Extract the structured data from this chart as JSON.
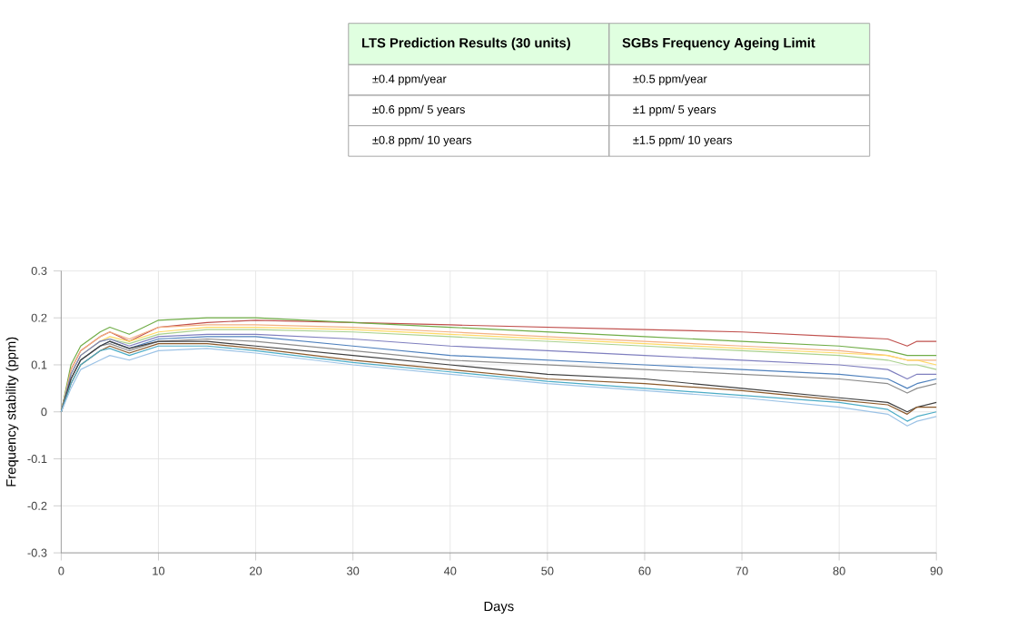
{
  "chart_data": [
    {
      "type": "other",
      "annotations": [
        "LTS Prediction Results (30 units)",
        "SGBs Frequency Ageing Limit",
        "±0.4 ppm/year",
        "±0.5 ppm/year",
        "±0.6 ppm/ 5 years",
        "±1 ppm/ 5 years",
        "±0.8 ppm/ 10 years",
        "±1.5 ppm/ 10 years"
      ]
    },
    {
      "type": "line",
      "xlabel": "Days",
      "ylabel": "Frequency stability (ppm)",
      "x": [
        0,
        1,
        2,
        4,
        5,
        7,
        10,
        15,
        20,
        30,
        40,
        50,
        60,
        70,
        80,
        85,
        87,
        88,
        90
      ],
      "series": [
        {
          "color": "#c0504d",
          "values": [
            0,
            0.09,
            0.13,
            0.16,
            0.17,
            0.15,
            0.18,
            0.19,
            0.195,
            0.19,
            0.185,
            0.18,
            0.175,
            0.17,
            0.16,
            0.155,
            0.14,
            0.15,
            0.15
          ]
        },
        {
          "color": "#70ad47",
          "values": [
            0,
            0.1,
            0.14,
            0.17,
            0.18,
            0.165,
            0.195,
            0.2,
            0.2,
            0.19,
            0.18,
            0.17,
            0.16,
            0.15,
            0.14,
            0.13,
            0.12,
            0.12,
            0.12
          ]
        },
        {
          "color": "#f4b183",
          "values": [
            0,
            0.09,
            0.13,
            0.16,
            0.17,
            0.155,
            0.18,
            0.185,
            0.185,
            0.18,
            0.17,
            0.16,
            0.15,
            0.14,
            0.13,
            0.12,
            0.11,
            0.11,
            0.11
          ]
        },
        {
          "color": "#ffd966",
          "values": [
            0,
            0.08,
            0.12,
            0.15,
            0.16,
            0.15,
            0.17,
            0.18,
            0.18,
            0.175,
            0.165,
            0.155,
            0.145,
            0.135,
            0.125,
            0.12,
            0.11,
            0.11,
            0.1
          ]
        },
        {
          "color": "#a9d18e",
          "values": [
            0,
            0.08,
            0.12,
            0.15,
            0.155,
            0.145,
            0.165,
            0.175,
            0.175,
            0.17,
            0.16,
            0.15,
            0.14,
            0.13,
            0.12,
            0.11,
            0.1,
            0.1,
            0.09
          ]
        },
        {
          "color": "#7f7fbf",
          "values": [
            0,
            0.08,
            0.12,
            0.15,
            0.155,
            0.14,
            0.16,
            0.165,
            0.165,
            0.155,
            0.14,
            0.13,
            0.12,
            0.11,
            0.1,
            0.09,
            0.07,
            0.08,
            0.08
          ]
        },
        {
          "color": "#4f81bd",
          "values": [
            0,
            0.07,
            0.11,
            0.14,
            0.15,
            0.135,
            0.155,
            0.16,
            0.16,
            0.14,
            0.12,
            0.11,
            0.1,
            0.09,
            0.08,
            0.07,
            0.05,
            0.06,
            0.07
          ]
        },
        {
          "color": "#8c8c8c",
          "values": [
            0,
            0.07,
            0.11,
            0.14,
            0.145,
            0.13,
            0.15,
            0.155,
            0.15,
            0.13,
            0.11,
            0.1,
            0.09,
            0.08,
            0.07,
            0.06,
            0.04,
            0.05,
            0.06
          ]
        },
        {
          "color": "#404040",
          "values": [
            0,
            0.07,
            0.11,
            0.14,
            0.15,
            0.135,
            0.15,
            0.15,
            0.14,
            0.12,
            0.1,
            0.08,
            0.07,
            0.05,
            0.03,
            0.02,
            0.0,
            0.01,
            0.02
          ]
        },
        {
          "color": "#8b5a2b",
          "values": [
            0,
            0.06,
            0.1,
            0.13,
            0.14,
            0.125,
            0.145,
            0.145,
            0.135,
            0.11,
            0.09,
            0.07,
            0.06,
            0.045,
            0.025,
            0.015,
            -0.005,
            0.01,
            0.01
          ]
        },
        {
          "color": "#4bacc6",
          "values": [
            0,
            0.06,
            0.1,
            0.13,
            0.135,
            0.12,
            0.14,
            0.14,
            0.13,
            0.105,
            0.085,
            0.065,
            0.05,
            0.035,
            0.02,
            0.005,
            -0.02,
            -0.01,
            0.0
          ]
        },
        {
          "color": "#9dc3e6",
          "values": [
            0,
            0.05,
            0.09,
            0.11,
            0.12,
            0.11,
            0.13,
            0.135,
            0.125,
            0.1,
            0.08,
            0.06,
            0.045,
            0.03,
            0.01,
            -0.005,
            -0.03,
            -0.02,
            -0.01
          ]
        }
      ],
      "xlim": [
        0,
        90
      ],
      "ylim": [
        -0.3,
        0.3
      ],
      "xticks": [
        0,
        10,
        20,
        30,
        40,
        50,
        60,
        70,
        80,
        90
      ],
      "yticks": [
        -0.3,
        -0.2,
        -0.1,
        0,
        0.1,
        0.2,
        0.3
      ],
      "grid": true,
      "marker": "none",
      "line_style": "solid"
    }
  ]
}
